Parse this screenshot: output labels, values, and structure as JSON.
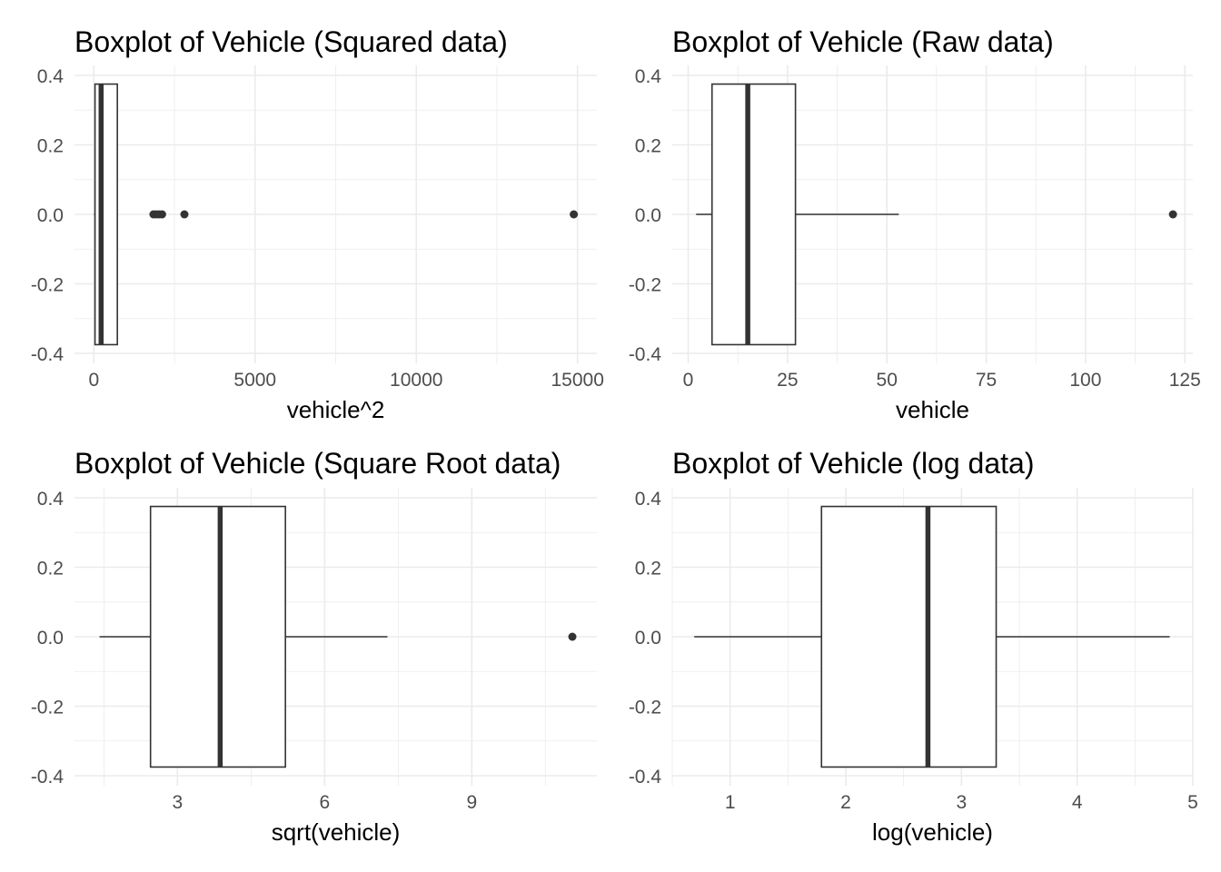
{
  "chart_data": [
    {
      "type": "boxplot",
      "title": "Boxplot of Vehicle (Squared data)",
      "xlabel": "vehicle^2",
      "ylabel": "",
      "xlim": [
        -600,
        15600
      ],
      "ylim": [
        -0.4,
        0.4
      ],
      "xticks": [
        0,
        5000,
        10000,
        15000
      ],
      "xtick_labels": [
        "0",
        "5000",
        "10000",
        "15000"
      ],
      "yticks": [
        0.4,
        0.2,
        0.0,
        -0.2,
        -0.4
      ],
      "ytick_labels": [
        "0.4",
        "0.2",
        "0.0",
        "-0.2",
        "-0.4"
      ],
      "grid": true,
      "box": {
        "min": 4,
        "q1": 36,
        "median": 225,
        "q3": 729,
        "max": 729,
        "outliers": [
          1849,
          1936,
          2025,
          2116,
          2809,
          14884
        ]
      }
    },
    {
      "type": "boxplot",
      "title": "Boxplot of Vehicle (Raw data)",
      "xlabel": "vehicle",
      "ylabel": "",
      "xlim": [
        -4,
        127
      ],
      "ylim": [
        -0.4,
        0.4
      ],
      "xticks": [
        0,
        25,
        50,
        75,
        100,
        125
      ],
      "xtick_labels": [
        "0",
        "25",
        "50",
        "75",
        "100",
        "125"
      ],
      "yticks": [
        0.4,
        0.2,
        0.0,
        -0.2,
        -0.4
      ],
      "ytick_labels": [
        "0.4",
        "0.2",
        "0.0",
        "-0.2",
        "-0.4"
      ],
      "grid": true,
      "box": {
        "min": 2,
        "q1": 6,
        "median": 15,
        "q3": 27,
        "max": 53,
        "outliers": [
          122
        ]
      }
    },
    {
      "type": "boxplot",
      "title": "Boxplot of Vehicle (Square Root data)",
      "xlabel": "sqrt(vehicle)",
      "ylabel": "",
      "xlim": [
        0.9,
        11.55
      ],
      "ylim": [
        -0.4,
        0.4
      ],
      "xticks": [
        3,
        6,
        9
      ],
      "xtick_labels": [
        "3",
        "6",
        "9"
      ],
      "yticks": [
        0.4,
        0.2,
        0.0,
        -0.2,
        -0.4
      ],
      "ytick_labels": [
        "0.4",
        "0.2",
        "0.0",
        "-0.2",
        "-0.4"
      ],
      "grid": true,
      "box": {
        "min": 1.41,
        "q1": 2.45,
        "median": 3.87,
        "q3": 5.2,
        "max": 7.28,
        "outliers": [
          11.05
        ]
      }
    },
    {
      "type": "boxplot",
      "title": "Boxplot of Vehicle (log data)",
      "xlabel": "log(vehicle)",
      "ylabel": "",
      "xlim": [
        0.5,
        5.0
      ],
      "ylim": [
        -0.4,
        0.4
      ],
      "xticks": [
        1,
        2,
        3,
        4,
        5
      ],
      "xtick_labels": [
        "1",
        "2",
        "3",
        "4",
        "5"
      ],
      "yticks": [
        0.4,
        0.2,
        0.0,
        -0.2,
        -0.4
      ],
      "ytick_labels": [
        "0.4",
        "0.2",
        "0.0",
        "-0.2",
        "-0.4"
      ],
      "grid": true,
      "box": {
        "min": 0.69,
        "q1": 1.79,
        "median": 2.71,
        "q3": 3.3,
        "max": 4.8,
        "outliers": []
      }
    }
  ]
}
